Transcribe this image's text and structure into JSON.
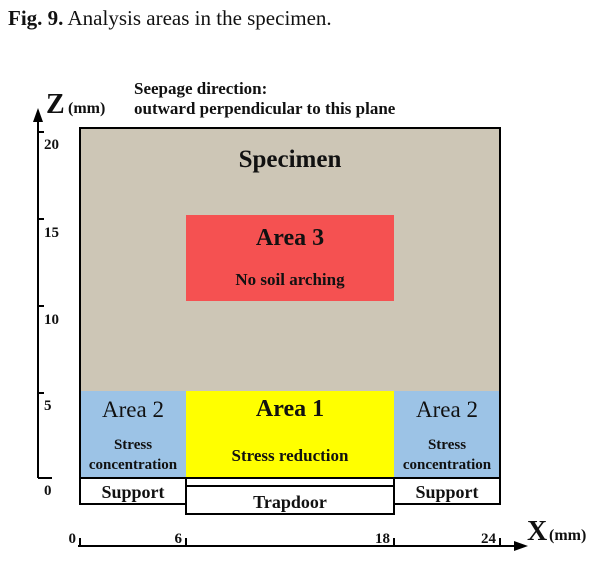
{
  "caption": {
    "label": "Fig. 9.",
    "text": "Analysis areas in the specimen."
  },
  "note": {
    "line1": "Seepage direction:",
    "line2": "outward perpendicular to this plane"
  },
  "axes": {
    "z_label": "Z",
    "z_unit": "(mm)",
    "x_label": "X",
    "x_unit": "(mm)",
    "z_ticks": [
      "0",
      "5",
      "10",
      "15",
      "20"
    ],
    "x_ticks": [
      "0",
      "6",
      "18",
      "24"
    ]
  },
  "specimen": {
    "label": "Specimen",
    "color": "#cdc6b6"
  },
  "area3": {
    "title": "Area 3",
    "subtitle": "No soil arching",
    "color": "#f55151"
  },
  "area1": {
    "title": "Area 1",
    "subtitle": "Stress reduction",
    "color": "#ffff00"
  },
  "area2_left": {
    "title": "Area 2",
    "line1": "Stress",
    "line2": "concentration",
    "color": "#9cc3e6"
  },
  "area2_right": {
    "title": "Area 2",
    "line1": "Stress",
    "line2": "concentration",
    "color": "#9cc3e6"
  },
  "support_left": {
    "label": "Support"
  },
  "support_right": {
    "label": "Support"
  },
  "trapdoor": {
    "label": "Trapdoor"
  }
}
